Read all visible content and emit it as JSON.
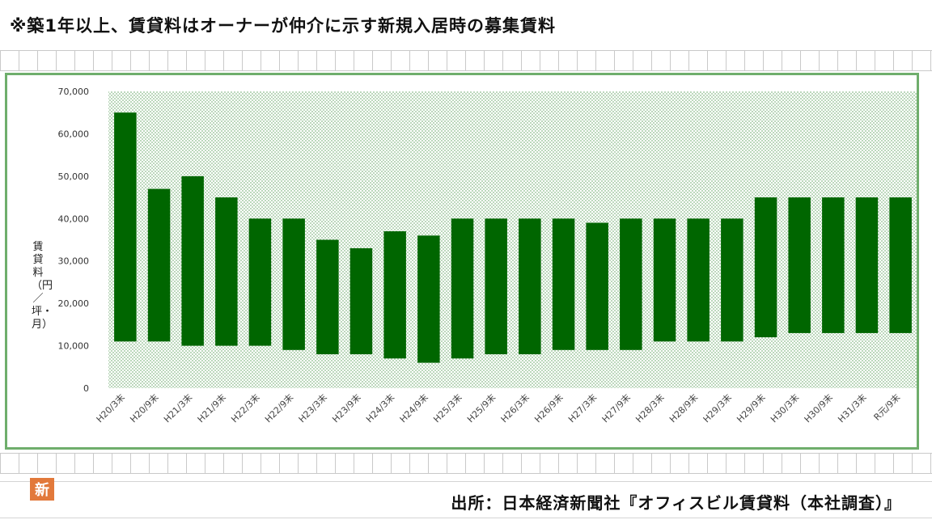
{
  "note": "※築1年以上、賃貸料はオーナーが仲介に示す新規入居時の募集賃料",
  "source": "出所：日本経済新聞社『オフィスビル賃貸料（本社調査）』",
  "logo_text": "新",
  "colors": {
    "bar": "#006600",
    "frame": "#6fae6c",
    "plot_dots": "#c8e0c8"
  },
  "chart_data": {
    "type": "bar",
    "subtype": "floating-range",
    "ylabel": "賃貸料（円／坪・月）",
    "ylim": [
      0,
      70000
    ],
    "yticks": [
      "0",
      "10,000",
      "20,000",
      "30,000",
      "40,000",
      "50,000",
      "60,000",
      "70,000"
    ],
    "grid": false,
    "categories": [
      "H20/3末",
      "H20/9末",
      "H21/3末",
      "H21/9末",
      "H22/3末",
      "H22/9末",
      "H23/3末",
      "H23/9末",
      "H24/3末",
      "H24/9末",
      "H25/3末",
      "H25/9末",
      "H26/3末",
      "H26/9末",
      "H27/3末",
      "H27/9末",
      "H28/3末",
      "H28/9末",
      "H29/3末",
      "H29/9末",
      "H30/3末",
      "H30/9末",
      "H31/3末",
      "R元/9末"
    ],
    "low": [
      11000,
      11000,
      10000,
      10000,
      10000,
      9000,
      8000,
      8000,
      7000,
      6000,
      7000,
      8000,
      8000,
      9000,
      9000,
      9000,
      11000,
      11000,
      11000,
      12000,
      13000,
      13000,
      13000,
      13000
    ],
    "high": [
      65000,
      47000,
      50000,
      45000,
      40000,
      40000,
      35000,
      33000,
      37000,
      36000,
      40000,
      40000,
      40000,
      40000,
      39000,
      40000,
      40000,
      40000,
      40000,
      45000,
      45000,
      45000,
      45000,
      45000
    ]
  }
}
